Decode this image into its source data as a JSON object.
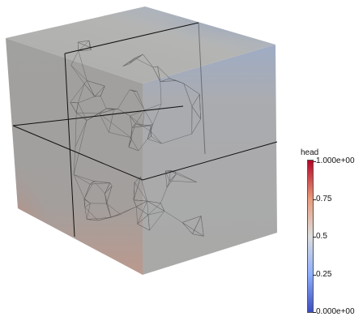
{
  "legend": {
    "title": "head",
    "ticks": [
      {
        "value": 1.0,
        "label": "1.000e+00"
      },
      {
        "value": 0.75,
        "label": "0.75"
      },
      {
        "value": 0.5,
        "label": "0.5"
      },
      {
        "value": 0.25,
        "label": "0.25"
      },
      {
        "value": 0.0,
        "label": "0.000e+00"
      }
    ],
    "colors": {
      "low": "#3b4cc0",
      "mid": "#dddddd",
      "high": "#b40426"
    }
  },
  "scene": {
    "description_colors": {
      "cube_face": "#a8a8a6",
      "edge": "#111111",
      "mesh": "#333333"
    }
  }
}
